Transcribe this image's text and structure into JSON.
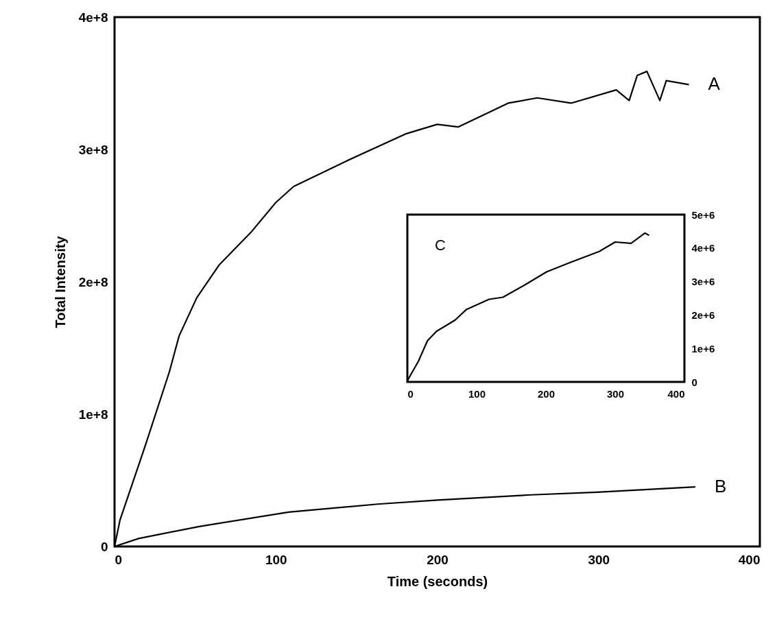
{
  "chart_data": [
    {
      "type": "line",
      "xlabel": "Time (seconds)",
      "ylabel": "Total Intensity",
      "xlim": [
        0,
        400
      ],
      "ylim": [
        0,
        400000000
      ],
      "xticks": [
        0,
        100,
        200,
        300,
        400
      ],
      "yticks": [
        0,
        {
          "value": 100000000,
          "label": "1e+8"
        },
        {
          "value": 200000000,
          "label": "2e+8"
        },
        {
          "value": 300000000,
          "label": "3e+8"
        },
        {
          "value": 400000000,
          "label": "4e+8"
        }
      ],
      "series": [
        {
          "name": "A",
          "color": "#000000",
          "x": [
            0,
            3.4,
            19,
            34,
            40,
            51,
            65,
            85,
            100,
            111,
            145,
            181,
            200,
            213,
            244,
            262,
            283,
            311,
            319,
            324,
            330,
            338,
            342,
            356
          ],
          "values": [
            0,
            20000000,
            76000000,
            132000000,
            159000000,
            188000000,
            213000000,
            238000000,
            260000000,
            272000000,
            292000000,
            312000000,
            319000000,
            317000000,
            335000000,
            339000000,
            335000000,
            345000000,
            337000000,
            356000000,
            359000000,
            337000000,
            352000000,
            349000000
          ]
        },
        {
          "name": "B",
          "color": "#000000",
          "x": [
            0,
            15,
            52,
            108,
            163,
            200,
            258,
            299,
            360
          ],
          "values": [
            0,
            6000000,
            15000000,
            26000000,
            32000000,
            35000000,
            39000000,
            41000000,
            45000000
          ]
        }
      ]
    },
    {
      "type": "line",
      "xlim": [
        0,
        400
      ],
      "ylim": [
        0,
        5000000
      ],
      "xticks": [
        0,
        100,
        200,
        300,
        400
      ],
      "yticks": [
        0,
        {
          "value": 1000000,
          "label": "1e+6"
        },
        {
          "value": 2000000,
          "label": "2e+6"
        },
        {
          "value": 3000000,
          "label": "3e+6"
        },
        {
          "value": 4000000,
          "label": "4e+6"
        },
        {
          "value": 5000000,
          "label": "5e+6"
        }
      ],
      "series": [
        {
          "name": "C",
          "color": "#000000",
          "x": [
            0,
            1,
            16,
            29,
            42,
            69,
            85,
            118,
            138,
            168,
            201,
            234,
            277,
            300,
            323,
            343,
            349
          ],
          "values": [
            0,
            70000,
            620000,
            1230000,
            1510000,
            1850000,
            2160000,
            2470000,
            2530000,
            2880000,
            3290000,
            3560000,
            3900000,
            4180000,
            4140000,
            4450000,
            4380000
          ]
        }
      ]
    }
  ]
}
